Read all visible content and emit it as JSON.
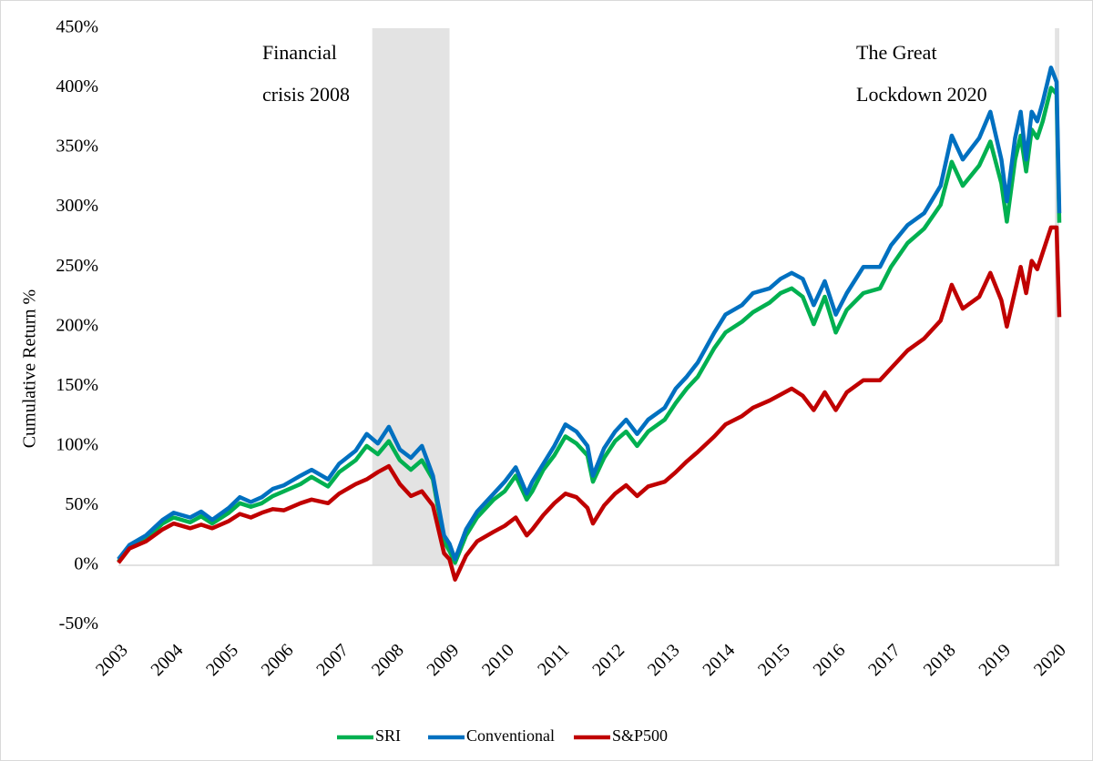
{
  "chart_data": {
    "type": "line",
    "y_axis_label": "Cumulative Return %",
    "annotations": [
      {
        "lines": [
          "Financial",
          "crisis 2008"
        ]
      },
      {
        "lines": [
          "The Great",
          "Lockdown 2020"
        ]
      }
    ],
    "shaded_periods": [
      [
        2007.6,
        2009.0
      ],
      [
        2019.97,
        2020.05
      ]
    ],
    "shade_color": "#e3e3e3",
    "x": [
      2003.0,
      2003.2,
      2003.5,
      2003.8,
      2004.0,
      2004.3,
      2004.5,
      2004.7,
      2005.0,
      2005.2,
      2005.4,
      2005.6,
      2005.8,
      2006.0,
      2006.3,
      2006.5,
      2006.8,
      2007.0,
      2007.3,
      2007.5,
      2007.7,
      2007.9,
      2008.1,
      2008.3,
      2008.5,
      2008.7,
      2008.9,
      2009.0,
      2009.1,
      2009.3,
      2009.5,
      2009.8,
      2010.0,
      2010.2,
      2010.4,
      2010.5,
      2010.7,
      2010.9,
      2011.1,
      2011.3,
      2011.5,
      2011.6,
      2011.8,
      2012.0,
      2012.2,
      2012.4,
      2012.6,
      2012.9,
      2013.1,
      2013.3,
      2013.5,
      2013.8,
      2014.0,
      2014.3,
      2014.5,
      2014.8,
      2015.0,
      2015.2,
      2015.4,
      2015.6,
      2015.8,
      2016.0,
      2016.2,
      2016.5,
      2016.8,
      2017.0,
      2017.3,
      2017.6,
      2017.9,
      2018.1,
      2018.3,
      2018.6,
      2018.8,
      2019.0,
      2019.1,
      2019.25,
      2019.35,
      2019.45,
      2019.55,
      2019.65,
      2019.75,
      2019.9,
      2020.0,
      2020.05
    ],
    "series": [
      {
        "name": "SRI",
        "color": "#00b050",
        "values": [
          3,
          15,
          22,
          35,
          40,
          36,
          41,
          35,
          44,
          52,
          49,
          52,
          58,
          62,
          68,
          74,
          66,
          78,
          88,
          100,
          93,
          104,
          88,
          80,
          88,
          72,
          20,
          12,
          2,
          25,
          40,
          55,
          62,
          75,
          55,
          62,
          80,
          92,
          108,
          102,
          92,
          70,
          90,
          104,
          112,
          100,
          112,
          122,
          136,
          148,
          158,
          182,
          195,
          204,
          212,
          220,
          228,
          232,
          225,
          202,
          225,
          195,
          214,
          228,
          232,
          250,
          270,
          282,
          302,
          338,
          318,
          335,
          355,
          320,
          288,
          340,
          360,
          330,
          365,
          358,
          372,
          400,
          395,
          287
        ]
      },
      {
        "name": "Conventional",
        "color": "#0070c0",
        "values": [
          5,
          17,
          25,
          38,
          44,
          40,
          45,
          38,
          48,
          57,
          53,
          57,
          64,
          67,
          75,
          80,
          72,
          85,
          96,
          110,
          102,
          116,
          97,
          90,
          100,
          75,
          25,
          18,
          5,
          30,
          45,
          60,
          70,
          82,
          60,
          70,
          85,
          100,
          118,
          112,
          100,
          75,
          98,
          112,
          122,
          110,
          122,
          132,
          148,
          158,
          170,
          195,
          210,
          218,
          228,
          232,
          240,
          245,
          240,
          218,
          238,
          210,
          228,
          250,
          250,
          268,
          285,
          295,
          318,
          360,
          340,
          358,
          380,
          340,
          305,
          358,
          380,
          340,
          380,
          372,
          388,
          417,
          405,
          295
        ]
      },
      {
        "name": "S&P500",
        "color": "#c00000",
        "values": [
          2,
          14,
          20,
          30,
          35,
          31,
          34,
          31,
          37,
          43,
          40,
          44,
          47,
          46,
          52,
          55,
          52,
          60,
          68,
          72,
          78,
          83,
          68,
          58,
          62,
          50,
          10,
          5,
          -12,
          8,
          20,
          28,
          33,
          40,
          25,
          30,
          42,
          52,
          60,
          57,
          48,
          35,
          50,
          60,
          67,
          58,
          66,
          70,
          78,
          87,
          95,
          108,
          118,
          125,
          132,
          138,
          143,
          148,
          142,
          130,
          145,
          130,
          145,
          155,
          155,
          165,
          180,
          190,
          205,
          235,
          215,
          225,
          245,
          222,
          200,
          230,
          250,
          228,
          255,
          248,
          262,
          283,
          283,
          208
        ]
      }
    ],
    "xlim": [
      2003,
      2020.05
    ],
    "xticks": [
      2003,
      2004,
      2005,
      2006,
      2007,
      2008,
      2009,
      2010,
      2011,
      2012,
      2013,
      2014,
      2015,
      2016,
      2017,
      2018,
      2019,
      2020
    ],
    "ylim": [
      -50,
      450
    ],
    "yticks": [
      {
        "value": -50,
        "label": "-50%"
      },
      {
        "value": 0,
        "label": "0%"
      },
      {
        "value": 50,
        "label": "50%"
      },
      {
        "value": 100,
        "label": "100%"
      },
      {
        "value": 150,
        "label": "150%"
      },
      {
        "value": 200,
        "label": "200%"
      },
      {
        "value": 250,
        "label": "250%"
      },
      {
        "value": 300,
        "label": "300%"
      },
      {
        "value": 350,
        "label": "350%"
      },
      {
        "value": 400,
        "label": "400%"
      },
      {
        "value": 450,
        "label": "450%"
      }
    ],
    "grid": false,
    "legend": "bottom"
  }
}
